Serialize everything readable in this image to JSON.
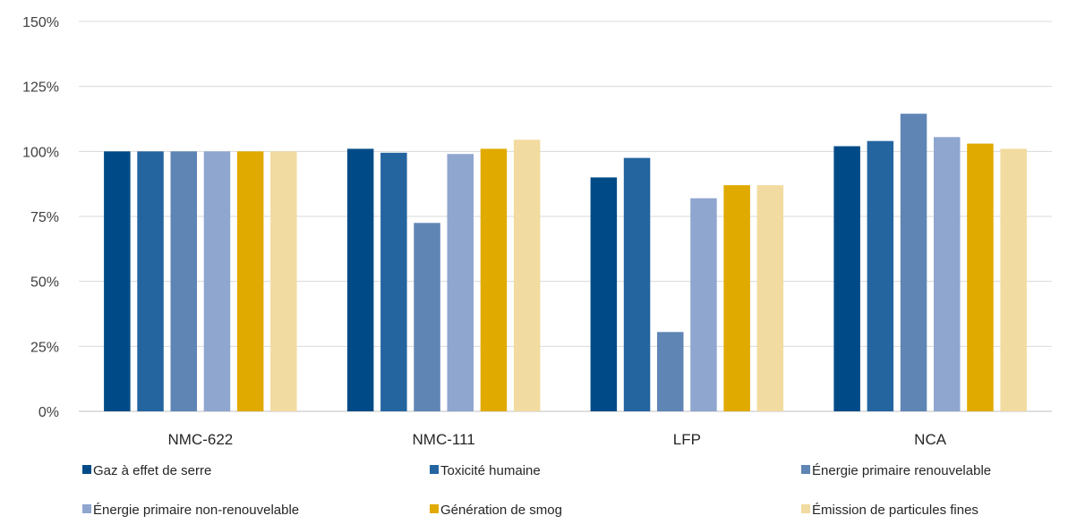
{
  "chart_data": {
    "type": "bar",
    "categories": [
      "NMC-622",
      "NMC-111",
      "LFP",
      "NCA"
    ],
    "series": [
      {
        "name": "Gaz à effet de serre",
        "color": "#004b87",
        "values": [
          100,
          101,
          90,
          102
        ]
      },
      {
        "name": "Toxicité humaine",
        "color": "#2465a0",
        "values": [
          100,
          99.5,
          97.5,
          104
        ]
      },
      {
        "name": "Énergie primaire renouvelable",
        "color": "#5f85b5",
        "values": [
          100,
          72.5,
          30.5,
          114.5
        ]
      },
      {
        "name": "Énergie primaire non-renouvelable",
        "color": "#8fa6cf",
        "values": [
          100,
          99,
          82,
          105.5
        ]
      },
      {
        "name": "Génération de smog",
        "color": "#e0aa00",
        "values": [
          100,
          101,
          87,
          103
        ]
      },
      {
        "name": "Émission de particules fines",
        "color": "#f2dba0",
        "values": [
          100,
          104.5,
          87,
          101
        ]
      }
    ],
    "y_ticks": [
      "0%",
      "25%",
      "50%",
      "75%",
      "100%",
      "125%",
      "150%"
    ],
    "ylim": [
      0,
      150
    ],
    "grid": true,
    "legend_position": "bottom"
  }
}
